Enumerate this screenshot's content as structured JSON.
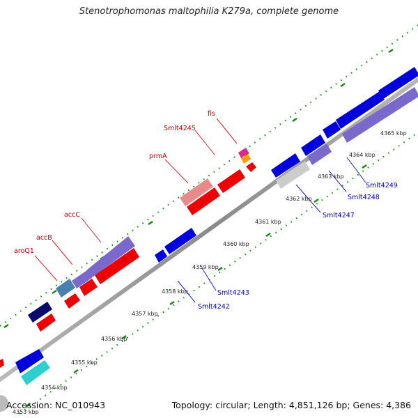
{
  "title": "Stenotrophomonas maltophilia K279a, complete genome",
  "footer": {
    "accession": "Accession: NC_010943",
    "summary": "Topology: circular; Length: 4,851,126 bp; Genes: 4,386"
  },
  "scale_ticks": [
    "4353 kbp",
    "4354 kbp",
    "4355 kbp",
    "4356 kbp",
    "4357 kbp",
    "4358 kbp",
    "4359 kbp",
    "4360 kbp",
    "4361 kbp",
    "4362 kbp",
    "4363 kbp",
    "4364 kbp",
    "4365 kbp"
  ],
  "forward_gene_labels": [
    "aroQ1",
    "accB",
    "accC",
    "prmA",
    "Smlt4245",
    "fis"
  ],
  "reverse_gene_labels": [
    "Smlt4242",
    "Smlt4243",
    "Smlt4247",
    "Smlt4248",
    "Smlt4249"
  ],
  "colors": {
    "forward_cds": "#ee0000",
    "reverse_cds": "#0000dd",
    "forward_highlight": "#e98a8a",
    "purple_gene": "#7b68cc",
    "navy_gene": "#0a0a6e",
    "steel_gene": "#4a7fb0",
    "cyan_gene": "#2fcfcf",
    "grey_gene": "#cccccc",
    "magenta_gene": "#e0258f",
    "orange_gene": "#ff9900",
    "backbone": "#888888",
    "tick_green": "#118811"
  }
}
